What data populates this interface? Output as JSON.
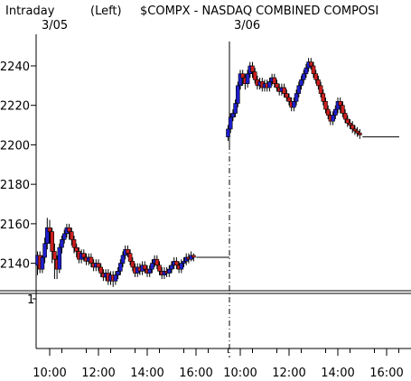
{
  "header": {
    "mode": "Intraday",
    "axis_side": "(Left)",
    "symbol": "$COMPX - NASDAQ COMBINED COMPOSI",
    "day1_label": "3/05",
    "day2_label": "3/06"
  },
  "volume_panel": {
    "top_label": "1"
  },
  "colors": {
    "up": "#1f1fcc",
    "down": "#cc1f1f",
    "axis": "#000000",
    "background": "#ffffff"
  },
  "chart_data": {
    "type": "candlestick",
    "title": "$COMPX - NASDAQ COMBINED COMPOSI",
    "y_axis_side": "left",
    "ylim": [
      2127,
      2256
    ],
    "y_ticks": [
      2140,
      2160,
      2180,
      2200,
      2220,
      2240
    ],
    "x_ticks": [
      {
        "label": "10:00",
        "day": 0,
        "t": 10.0
      },
      {
        "label": "12:00",
        "day": 0,
        "t": 12.0
      },
      {
        "label": "14:00",
        "day": 0,
        "t": 14.0
      },
      {
        "label": "16:00",
        "day": 0,
        "t": 16.0
      },
      {
        "label": "10:00",
        "day": 1,
        "t": 10.0
      },
      {
        "label": "12:00",
        "day": 1,
        "t": 12.0
      },
      {
        "label": "14:00",
        "day": 1,
        "t": 14.0
      },
      {
        "label": "16:00",
        "day": 1,
        "t": 16.0
      }
    ],
    "sessions": [
      {
        "label": "3/05",
        "after_close_level": 2143,
        "candles": [
          [
            9.5,
            2139,
            2144,
            2134,
            2146
          ],
          [
            9.6,
            2144,
            2137,
            2135,
            2146
          ],
          [
            9.7,
            2137,
            2143,
            2135,
            2144
          ],
          [
            9.8,
            2143,
            2150,
            2140,
            2153
          ],
          [
            9.9,
            2150,
            2158,
            2147,
            2163
          ],
          [
            10.0,
            2158,
            2156,
            2150,
            2162
          ],
          [
            10.1,
            2156,
            2146,
            2140,
            2158
          ],
          [
            10.2,
            2146,
            2142,
            2132,
            2150
          ],
          [
            10.3,
            2142,
            2137,
            2132,
            2144
          ],
          [
            10.4,
            2137,
            2148,
            2135,
            2150
          ],
          [
            10.5,
            2148,
            2152,
            2145,
            2154
          ],
          [
            10.6,
            2152,
            2155,
            2150,
            2157
          ],
          [
            10.7,
            2155,
            2158,
            2153,
            2160
          ],
          [
            10.8,
            2158,
            2156,
            2152,
            2160
          ],
          [
            10.9,
            2156,
            2152,
            2149,
            2158
          ],
          [
            11.0,
            2152,
            2148,
            2145,
            2154
          ],
          [
            11.1,
            2148,
            2146,
            2143,
            2150
          ],
          [
            11.2,
            2146,
            2142,
            2140,
            2148
          ],
          [
            11.3,
            2142,
            2145,
            2140,
            2147
          ],
          [
            11.4,
            2145,
            2143,
            2141,
            2147
          ],
          [
            11.5,
            2143,
            2141,
            2139,
            2145
          ],
          [
            11.6,
            2141,
            2143,
            2139,
            2145
          ],
          [
            11.7,
            2143,
            2140,
            2138,
            2145
          ],
          [
            11.8,
            2140,
            2138,
            2136,
            2142
          ],
          [
            11.9,
            2138,
            2140,
            2136,
            2142
          ],
          [
            12.0,
            2140,
            2138,
            2136,
            2142
          ],
          [
            12.1,
            2138,
            2135,
            2133,
            2140
          ],
          [
            12.2,
            2135,
            2133,
            2131,
            2137
          ],
          [
            12.3,
            2133,
            2135,
            2131,
            2137
          ],
          [
            12.4,
            2135,
            2131,
            2129,
            2137
          ],
          [
            12.5,
            2131,
            2134,
            2129,
            2136
          ],
          [
            12.6,
            2134,
            2131,
            2128,
            2136
          ],
          [
            12.7,
            2131,
            2134,
            2129,
            2136
          ],
          [
            12.8,
            2134,
            2136,
            2132,
            2138
          ],
          [
            12.9,
            2136,
            2140,
            2134,
            2142
          ],
          [
            13.0,
            2140,
            2144,
            2138,
            2146
          ],
          [
            13.1,
            2144,
            2147,
            2142,
            2149
          ],
          [
            13.2,
            2147,
            2145,
            2143,
            2149
          ],
          [
            13.3,
            2145,
            2141,
            2139,
            2147
          ],
          [
            13.4,
            2141,
            2138,
            2136,
            2143
          ],
          [
            13.5,
            2138,
            2135,
            2133,
            2140
          ],
          [
            13.6,
            2135,
            2138,
            2133,
            2140
          ],
          [
            13.7,
            2138,
            2136,
            2134,
            2140
          ],
          [
            13.8,
            2136,
            2139,
            2134,
            2141
          ],
          [
            13.9,
            2139,
            2137,
            2135,
            2141
          ],
          [
            14.0,
            2137,
            2135,
            2133,
            2139
          ],
          [
            14.1,
            2135,
            2137,
            2133,
            2139
          ],
          [
            14.2,
            2137,
            2140,
            2135,
            2142
          ],
          [
            14.3,
            2140,
            2142,
            2138,
            2144
          ],
          [
            14.4,
            2142,
            2139,
            2137,
            2144
          ],
          [
            14.5,
            2139,
            2136,
            2134,
            2141
          ],
          [
            14.6,
            2136,
            2134,
            2132,
            2138
          ],
          [
            14.7,
            2134,
            2136,
            2132,
            2138
          ],
          [
            14.8,
            2136,
            2135,
            2133,
            2138
          ],
          [
            14.9,
            2135,
            2137,
            2133,
            2139
          ],
          [
            15.0,
            2137,
            2139,
            2135,
            2141
          ],
          [
            15.1,
            2139,
            2141,
            2137,
            2143
          ],
          [
            15.2,
            2141,
            2139,
            2137,
            2143
          ],
          [
            15.3,
            2139,
            2137,
            2135,
            2141
          ],
          [
            15.4,
            2137,
            2140,
            2135,
            2142
          ],
          [
            15.5,
            2140,
            2141,
            2138,
            2143
          ],
          [
            15.6,
            2141,
            2143,
            2139,
            2145
          ],
          [
            15.7,
            2143,
            2142,
            2140,
            2145
          ],
          [
            15.8,
            2142,
            2144,
            2141,
            2146
          ],
          [
            15.9,
            2144,
            2143,
            2141,
            2145
          ]
        ]
      },
      {
        "label": "3/06",
        "after_close_level": 2204,
        "candles": [
          [
            9.5,
            2204,
            2208,
            2202,
            2210
          ],
          [
            9.6,
            2208,
            2214,
            2206,
            2216
          ],
          [
            9.7,
            2214,
            2216,
            2212,
            2218
          ],
          [
            9.8,
            2216,
            2221,
            2214,
            2223
          ],
          [
            9.9,
            2221,
            2230,
            2219,
            2232
          ],
          [
            10.0,
            2230,
            2236,
            2228,
            2238
          ],
          [
            10.1,
            2236,
            2234,
            2230,
            2238
          ],
          [
            10.2,
            2234,
            2231,
            2228,
            2236
          ],
          [
            10.3,
            2231,
            2236,
            2229,
            2238
          ],
          [
            10.4,
            2236,
            2240,
            2234,
            2242
          ],
          [
            10.5,
            2240,
            2237,
            2234,
            2242
          ],
          [
            10.6,
            2237,
            2233,
            2231,
            2239
          ],
          [
            10.7,
            2233,
            2230,
            2228,
            2235
          ],
          [
            10.8,
            2230,
            2232,
            2228,
            2234
          ],
          [
            10.9,
            2232,
            2229,
            2227,
            2234
          ],
          [
            11.0,
            2229,
            2231,
            2227,
            2233
          ],
          [
            11.1,
            2231,
            2229,
            2227,
            2233
          ],
          [
            11.2,
            2229,
            2232,
            2227,
            2234
          ],
          [
            11.3,
            2232,
            2234,
            2230,
            2236
          ],
          [
            11.4,
            2234,
            2231,
            2229,
            2236
          ],
          [
            11.5,
            2231,
            2229,
            2227,
            2233
          ],
          [
            11.6,
            2229,
            2227,
            2225,
            2231
          ],
          [
            11.7,
            2227,
            2229,
            2225,
            2231
          ],
          [
            11.8,
            2229,
            2226,
            2224,
            2231
          ],
          [
            11.9,
            2226,
            2224,
            2222,
            2228
          ],
          [
            12.0,
            2224,
            2222,
            2220,
            2226
          ],
          [
            12.1,
            2222,
            2219,
            2217,
            2224
          ],
          [
            12.2,
            2219,
            2222,
            2217,
            2224
          ],
          [
            12.3,
            2222,
            2226,
            2220,
            2228
          ],
          [
            12.4,
            2226,
            2230,
            2224,
            2232
          ],
          [
            12.5,
            2230,
            2233,
            2228,
            2235
          ],
          [
            12.6,
            2233,
            2236,
            2231,
            2238
          ],
          [
            12.7,
            2236,
            2239,
            2234,
            2241
          ],
          [
            12.8,
            2239,
            2242,
            2237,
            2244
          ],
          [
            12.9,
            2242,
            2240,
            2238,
            2244
          ],
          [
            13.0,
            2240,
            2236,
            2234,
            2242
          ],
          [
            13.1,
            2236,
            2233,
            2231,
            2238
          ],
          [
            13.2,
            2233,
            2230,
            2228,
            2235
          ],
          [
            13.3,
            2230,
            2226,
            2224,
            2232
          ],
          [
            13.4,
            2226,
            2222,
            2220,
            2228
          ],
          [
            13.5,
            2222,
            2218,
            2216,
            2224
          ],
          [
            13.6,
            2218,
            2215,
            2213,
            2220
          ],
          [
            13.7,
            2215,
            2212,
            2210,
            2217
          ],
          [
            13.8,
            2212,
            2215,
            2210,
            2217
          ],
          [
            13.9,
            2215,
            2218,
            2213,
            2220
          ],
          [
            14.0,
            2218,
            2222,
            2216,
            2224
          ],
          [
            14.1,
            2222,
            2220,
            2216,
            2224
          ],
          [
            14.2,
            2220,
            2216,
            2214,
            2222
          ],
          [
            14.3,
            2216,
            2213,
            2211,
            2218
          ],
          [
            14.4,
            2213,
            2211,
            2209,
            2215
          ],
          [
            14.5,
            2211,
            2210,
            2208,
            2213
          ],
          [
            14.6,
            2210,
            2208,
            2206,
            2212
          ],
          [
            14.7,
            2208,
            2207,
            2205,
            2210
          ],
          [
            14.8,
            2207,
            2206,
            2204,
            2209
          ],
          [
            14.9,
            2206,
            2205,
            2203,
            2208
          ]
        ]
      }
    ]
  }
}
